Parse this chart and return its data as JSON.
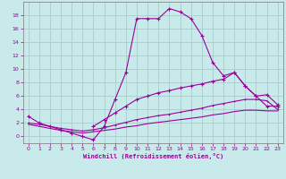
{
  "bg_color": "#c8eaea",
  "line_color": "#990099",
  "grid_color": "#aacccc",
  "xlabel": "Windchill (Refroidissement éolien,°C)",
  "xlabel_color": "#990099",
  "tick_color": "#990099",
  "spine_color": "#777777",
  "xlim": [
    -0.5,
    23.5
  ],
  "ylim": [
    -1,
    20
  ],
  "xticks": [
    0,
    1,
    2,
    3,
    4,
    5,
    6,
    7,
    8,
    9,
    10,
    11,
    12,
    13,
    14,
    15,
    16,
    17,
    18,
    19,
    20,
    21,
    22,
    23
  ],
  "yticks": [
    0,
    2,
    4,
    6,
    8,
    10,
    12,
    14,
    16,
    18
  ],
  "curve1_x": [
    0,
    1,
    2,
    3,
    4,
    5,
    6,
    7,
    8,
    9,
    10,
    11,
    12,
    13,
    14,
    15,
    16,
    17,
    18,
    19,
    20,
    21,
    22,
    23
  ],
  "curve1_y": [
    3,
    2,
    1.5,
    1,
    0.5,
    0,
    -0.5,
    1.5,
    5.5,
    9.5,
    17.5,
    17.5,
    17.5,
    19,
    18.5,
    17.5,
    15,
    11,
    9,
    9.5,
    7.5,
    6,
    4.5,
    4.5
  ],
  "curve2_x": [
    6,
    7,
    8,
    9,
    10,
    11,
    12,
    13,
    14,
    15,
    16,
    17,
    18,
    19,
    20,
    21,
    22,
    23
  ],
  "curve2_y": [
    1.5,
    2.5,
    3.5,
    4.5,
    5.5,
    6.0,
    6.5,
    6.8,
    7.2,
    7.5,
    7.8,
    8.2,
    8.5,
    9.5,
    7.5,
    6.0,
    6.2,
    4.7
  ],
  "curve3_x": [
    0,
    1,
    2,
    3,
    4,
    5,
    6,
    7,
    8,
    9,
    10,
    11,
    12,
    13,
    14,
    15,
    16,
    17,
    18,
    19,
    20,
    21,
    22,
    23
  ],
  "curve3_y": [
    2.0,
    1.8,
    1.5,
    1.2,
    1.0,
    0.8,
    1.0,
    1.3,
    1.7,
    2.1,
    2.5,
    2.8,
    3.1,
    3.3,
    3.6,
    3.9,
    4.2,
    4.6,
    4.9,
    5.2,
    5.5,
    5.5,
    5.3,
    4.0
  ],
  "curve4_x": [
    0,
    1,
    2,
    3,
    4,
    5,
    6,
    7,
    8,
    9,
    10,
    11,
    12,
    13,
    14,
    15,
    16,
    17,
    18,
    19,
    20,
    21,
    22,
    23
  ],
  "curve4_y": [
    1.8,
    1.5,
    1.2,
    0.9,
    0.7,
    0.5,
    0.7,
    0.9,
    1.1,
    1.4,
    1.6,
    1.9,
    2.1,
    2.3,
    2.5,
    2.7,
    2.9,
    3.2,
    3.4,
    3.7,
    3.9,
    3.9,
    3.8,
    3.8
  ]
}
